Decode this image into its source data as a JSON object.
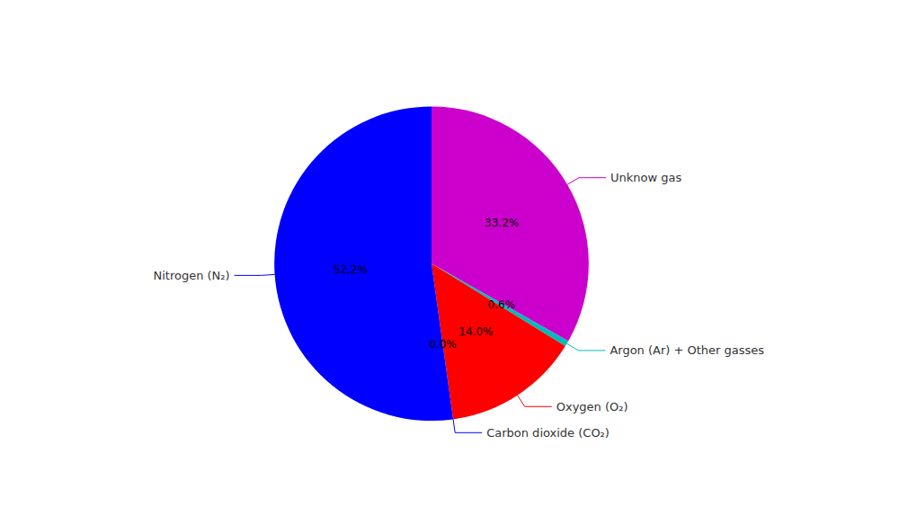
{
  "chart_data": {
    "type": "pie",
    "categories": [
      "Unknow gas",
      "Argon (Ar) + Other gasses",
      "Oxygen (O₂)",
      "Carbon dioxide (CO₂)",
      "Nitrogen (N₂)"
    ],
    "values": [
      33.2,
      0.6,
      14.0,
      0.0,
      52.2
    ],
    "value_labels": [
      "33.2%",
      "0.6%",
      "14.0%",
      "0.0%",
      "52.2%"
    ],
    "colors": [
      "#CC00CC",
      "#00BBBB",
      "#FF0000",
      "#0000FF",
      "#0000FF"
    ],
    "data_labels": true
  }
}
